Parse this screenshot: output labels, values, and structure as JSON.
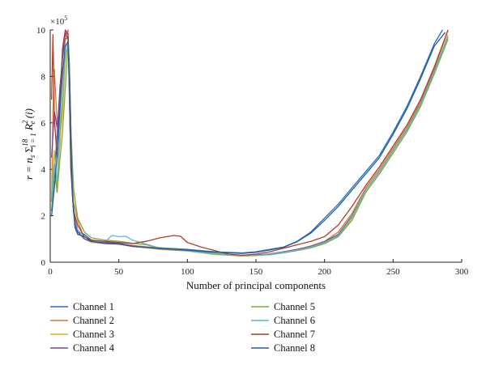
{
  "chart_data": {
    "type": "line",
    "xlabel": "Number of principal components",
    "ylabel": "r = n_s Σ_{i=1}^{18} R_e^2(i)",
    "ylabel_parts": {
      "lhs": "r = n",
      "sub_s": "s",
      "sum": "Σ",
      "sub_i": "i = 1",
      "sup_18": "18",
      "R": "R",
      "sup_2": "2",
      "sub_e": "e",
      "arg": "(i)"
    },
    "y_multiplier": "×10",
    "y_multiplier_exp": "5",
    "xlim": [
      0,
      300
    ],
    "ylim": [
      0,
      10
    ],
    "x_ticks": [
      0,
      50,
      100,
      150,
      200,
      250,
      300
    ],
    "y_ticks": [
      0,
      2,
      4,
      6,
      8,
      10
    ],
    "grid": false,
    "legend_position": "bottom",
    "series": [
      {
        "name": "Channel 1",
        "color": "#2b6cb8",
        "points": [
          [
            1,
            2.2
          ],
          [
            3,
            3.8
          ],
          [
            5,
            5.5
          ],
          [
            7,
            7.5
          ],
          [
            9,
            8.8
          ],
          [
            11,
            9.6
          ],
          [
            13,
            9.7
          ],
          [
            14,
            8.5
          ],
          [
            15,
            6.0
          ],
          [
            16,
            3.2
          ],
          [
            18,
            1.6
          ],
          [
            20,
            1.3
          ],
          [
            25,
            1.2
          ],
          [
            30,
            0.95
          ],
          [
            40,
            0.85
          ],
          [
            50,
            0.82
          ],
          [
            60,
            0.7
          ],
          [
            80,
            0.62
          ],
          [
            100,
            0.55
          ],
          [
            120,
            0.45
          ],
          [
            140,
            0.4
          ],
          [
            150,
            0.45
          ],
          [
            160,
            0.55
          ],
          [
            170,
            0.65
          ],
          [
            180,
            0.9
          ],
          [
            190,
            1.3
          ],
          [
            200,
            1.9
          ],
          [
            210,
            2.5
          ],
          [
            220,
            3.2
          ],
          [
            230,
            3.9
          ],
          [
            240,
            4.6
          ],
          [
            250,
            5.6
          ],
          [
            260,
            6.7
          ],
          [
            270,
            8.0
          ],
          [
            280,
            9.4
          ],
          [
            286,
            10.0
          ]
        ]
      },
      {
        "name": "Channel 2",
        "color": "#e0762a",
        "points": [
          [
            1,
            2.6
          ],
          [
            2,
            6.5
          ],
          [
            3,
            8.3
          ],
          [
            5,
            6.0
          ],
          [
            7,
            5.0
          ],
          [
            9,
            7.2
          ],
          [
            11,
            9.7
          ],
          [
            13,
            10.0
          ],
          [
            14,
            7.5
          ],
          [
            15,
            4.8
          ],
          [
            17,
            2.6
          ],
          [
            20,
            1.8
          ],
          [
            25,
            1.0
          ],
          [
            30,
            0.9
          ],
          [
            40,
            0.85
          ],
          [
            50,
            0.8
          ],
          [
            60,
            0.72
          ],
          [
            80,
            0.6
          ],
          [
            100,
            0.5
          ],
          [
            120,
            0.35
          ],
          [
            140,
            0.28
          ],
          [
            150,
            0.3
          ],
          [
            160,
            0.35
          ],
          [
            170,
            0.45
          ],
          [
            180,
            0.55
          ],
          [
            190,
            0.7
          ],
          [
            200,
            0.9
          ],
          [
            210,
            1.3
          ],
          [
            220,
            2.1
          ],
          [
            230,
            3.2
          ],
          [
            240,
            4.0
          ],
          [
            250,
            4.9
          ],
          [
            260,
            5.8
          ],
          [
            270,
            6.9
          ],
          [
            280,
            8.3
          ],
          [
            290,
            10.0
          ]
        ]
      },
      {
        "name": "Channel 3",
        "color": "#d9b21c",
        "points": [
          [
            1,
            2.9
          ],
          [
            3,
            4.8
          ],
          [
            5,
            3.2
          ],
          [
            7,
            5.2
          ],
          [
            9,
            6.4
          ],
          [
            11,
            8.6
          ],
          [
            13,
            9.6
          ],
          [
            14,
            7.2
          ],
          [
            15,
            4.2
          ],
          [
            17,
            2.1
          ],
          [
            20,
            1.3
          ],
          [
            25,
            1.0
          ],
          [
            30,
            0.85
          ],
          [
            40,
            0.8
          ],
          [
            50,
            0.78
          ],
          [
            60,
            0.68
          ],
          [
            80,
            0.55
          ],
          [
            100,
            0.48
          ],
          [
            120,
            0.33
          ],
          [
            140,
            0.26
          ],
          [
            150,
            0.28
          ],
          [
            160,
            0.33
          ],
          [
            170,
            0.42
          ],
          [
            180,
            0.5
          ],
          [
            190,
            0.62
          ],
          [
            200,
            0.8
          ],
          [
            210,
            1.1
          ],
          [
            220,
            1.9
          ],
          [
            230,
            3.1
          ],
          [
            240,
            3.9
          ],
          [
            250,
            4.8
          ],
          [
            260,
            5.7
          ],
          [
            270,
            6.8
          ],
          [
            280,
            8.2
          ],
          [
            290,
            9.8
          ]
        ]
      },
      {
        "name": "Channel 4",
        "color": "#7b3fa8",
        "points": [
          [
            1,
            4.5
          ],
          [
            3,
            6.5
          ],
          [
            5,
            5.8
          ],
          [
            7,
            6.8
          ],
          [
            9,
            9.2
          ],
          [
            11,
            10.0
          ],
          [
            13,
            9.8
          ],
          [
            14,
            7.0
          ],
          [
            15,
            4.0
          ],
          [
            17,
            2.2
          ],
          [
            20,
            1.3
          ],
          [
            25,
            1.0
          ],
          [
            30,
            0.9
          ],
          [
            40,
            0.85
          ],
          [
            50,
            0.8
          ],
          [
            60,
            0.7
          ],
          [
            80,
            0.58
          ],
          [
            100,
            0.5
          ],
          [
            120,
            0.36
          ],
          [
            140,
            0.29
          ],
          [
            150,
            0.31
          ],
          [
            160,
            0.36
          ],
          [
            170,
            0.45
          ],
          [
            180,
            0.55
          ],
          [
            190,
            0.68
          ],
          [
            200,
            0.88
          ],
          [
            210,
            1.2
          ],
          [
            220,
            2.0
          ],
          [
            230,
            3.1
          ],
          [
            240,
            3.9
          ],
          [
            250,
            4.8
          ],
          [
            260,
            5.7
          ],
          [
            270,
            6.8
          ],
          [
            280,
            8.2
          ],
          [
            290,
            9.7
          ]
        ]
      },
      {
        "name": "Channel 5",
        "color": "#76ad3c",
        "points": [
          [
            1,
            2.2
          ],
          [
            3,
            4.0
          ],
          [
            5,
            3.0
          ],
          [
            7,
            4.4
          ],
          [
            9,
            5.6
          ],
          [
            11,
            7.5
          ],
          [
            13,
            9.3
          ],
          [
            14,
            8.3
          ],
          [
            15,
            5.8
          ],
          [
            17,
            3.2
          ],
          [
            20,
            1.9
          ],
          [
            25,
            1.3
          ],
          [
            30,
            1.05
          ],
          [
            40,
            0.95
          ],
          [
            50,
            0.9
          ],
          [
            60,
            0.82
          ],
          [
            70,
            0.75
          ],
          [
            80,
            0.62
          ],
          [
            100,
            0.52
          ],
          [
            120,
            0.38
          ],
          [
            140,
            0.3
          ],
          [
            150,
            0.3
          ],
          [
            160,
            0.32
          ],
          [
            170,
            0.4
          ],
          [
            180,
            0.5
          ],
          [
            190,
            0.62
          ],
          [
            200,
            0.8
          ],
          [
            210,
            1.1
          ],
          [
            220,
            1.8
          ],
          [
            230,
            3.0
          ],
          [
            240,
            3.8
          ],
          [
            250,
            4.7
          ],
          [
            260,
            5.6
          ],
          [
            270,
            6.7
          ],
          [
            280,
            8.1
          ],
          [
            290,
            9.6
          ]
        ]
      },
      {
        "name": "Channel 6",
        "color": "#5ab6d8",
        "points": [
          [
            1,
            2.8
          ],
          [
            3,
            4.2
          ],
          [
            5,
            3.5
          ],
          [
            7,
            5.8
          ],
          [
            9,
            7.2
          ],
          [
            11,
            8.9
          ],
          [
            13,
            9.5
          ],
          [
            14,
            7.4
          ],
          [
            15,
            4.6
          ],
          [
            17,
            2.3
          ],
          [
            20,
            1.4
          ],
          [
            25,
            1.1
          ],
          [
            30,
            0.92
          ],
          [
            40,
            0.88
          ],
          [
            45,
            1.15
          ],
          [
            50,
            1.1
          ],
          [
            55,
            1.12
          ],
          [
            60,
            0.95
          ],
          [
            70,
            0.78
          ],
          [
            80,
            0.6
          ],
          [
            100,
            0.5
          ],
          [
            120,
            0.35
          ],
          [
            140,
            0.28
          ],
          [
            150,
            0.3
          ],
          [
            160,
            0.34
          ],
          [
            170,
            0.43
          ],
          [
            180,
            0.52
          ],
          [
            190,
            0.66
          ],
          [
            200,
            0.85
          ],
          [
            210,
            1.15
          ],
          [
            220,
            1.95
          ],
          [
            230,
            3.1
          ],
          [
            240,
            3.9
          ],
          [
            250,
            4.8
          ],
          [
            260,
            5.7
          ],
          [
            270,
            6.8
          ],
          [
            280,
            8.2
          ],
          [
            290,
            9.7
          ]
        ]
      },
      {
        "name": "Channel 7",
        "color": "#b23a26",
        "points": [
          [
            1,
            7.0
          ],
          [
            2,
            9.8
          ],
          [
            3,
            6.2
          ],
          [
            5,
            4.5
          ],
          [
            7,
            7.0
          ],
          [
            9,
            9.0
          ],
          [
            11,
            9.9
          ],
          [
            13,
            9.6
          ],
          [
            14,
            7.4
          ],
          [
            15,
            4.5
          ],
          [
            17,
            2.2
          ],
          [
            20,
            1.6
          ],
          [
            25,
            1.1
          ],
          [
            30,
            0.95
          ],
          [
            40,
            0.9
          ],
          [
            50,
            0.85
          ],
          [
            60,
            0.8
          ],
          [
            70,
            0.9
          ],
          [
            80,
            1.05
          ],
          [
            90,
            1.15
          ],
          [
            95,
            1.12
          ],
          [
            100,
            0.85
          ],
          [
            110,
            0.65
          ],
          [
            120,
            0.5
          ],
          [
            130,
            0.35
          ],
          [
            140,
            0.3
          ],
          [
            150,
            0.35
          ],
          [
            160,
            0.45
          ],
          [
            170,
            0.6
          ],
          [
            180,
            0.75
          ],
          [
            190,
            0.9
          ],
          [
            200,
            1.1
          ],
          [
            210,
            1.6
          ],
          [
            220,
            2.4
          ],
          [
            230,
            3.3
          ],
          [
            240,
            4.1
          ],
          [
            250,
            5.0
          ],
          [
            260,
            5.9
          ],
          [
            270,
            7.0
          ],
          [
            280,
            8.4
          ],
          [
            290,
            10.0
          ]
        ]
      },
      {
        "name": "Channel 8",
        "color": "#1d5ea8",
        "points": [
          [
            1,
            2.0
          ],
          [
            3,
            3.2
          ],
          [
            5,
            4.6
          ],
          [
            7,
            6.5
          ],
          [
            9,
            8.2
          ],
          [
            11,
            9.3
          ],
          [
            13,
            9.5
          ],
          [
            14,
            8.0
          ],
          [
            15,
            5.5
          ],
          [
            16,
            3.0
          ],
          [
            18,
            1.5
          ],
          [
            20,
            1.2
          ],
          [
            25,
            1.1
          ],
          [
            30,
            0.9
          ],
          [
            40,
            0.8
          ],
          [
            50,
            0.78
          ],
          [
            60,
            0.68
          ],
          [
            80,
            0.6
          ],
          [
            100,
            0.52
          ],
          [
            120,
            0.43
          ],
          [
            140,
            0.38
          ],
          [
            150,
            0.43
          ],
          [
            160,
            0.53
          ],
          [
            170,
            0.64
          ],
          [
            180,
            0.88
          ],
          [
            190,
            1.25
          ],
          [
            200,
            1.8
          ],
          [
            210,
            2.4
          ],
          [
            220,
            3.1
          ],
          [
            230,
            3.8
          ],
          [
            240,
            4.5
          ],
          [
            250,
            5.5
          ],
          [
            260,
            6.6
          ],
          [
            270,
            7.9
          ],
          [
            280,
            9.3
          ],
          [
            288,
            9.9
          ]
        ]
      }
    ]
  }
}
